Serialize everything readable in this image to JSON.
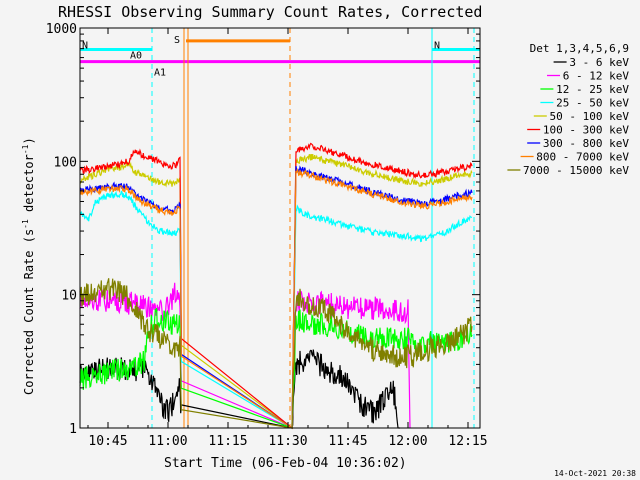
{
  "chart_data": {
    "type": "line",
    "title": "RHESSI Observing Summary Count Rates, Corrected",
    "xlabel": "Start Time (06-Feb-04 10:36:02)",
    "ylabel_main": "Corrected Count Rate (s",
    "ylabel_sup1": "-1",
    "ylabel_mid": " detector",
    "ylabel_sup2": "-1",
    "ylabel_end": ")",
    "yscale": "log",
    "ylim": [
      1,
      1000
    ],
    "xlim_min": [
      638,
      738
    ],
    "x_ticks": [
      {
        "t": 645,
        "label": "10:45"
      },
      {
        "t": 660,
        "label": "11:00"
      },
      {
        "t": 675,
        "label": "11:15"
      },
      {
        "t": 690,
        "label": "11:30"
      },
      {
        "t": 705,
        "label": "11:45"
      },
      {
        "t": 720,
        "label": "12:00"
      },
      {
        "t": 735,
        "label": "12:15"
      }
    ],
    "y_ticks": [
      {
        "v": 1,
        "label": "1"
      },
      {
        "v": 10,
        "label": "10"
      },
      {
        "v": 100,
        "label": "100"
      },
      {
        "v": 1000,
        "label": "1000"
      }
    ],
    "legend_title": "Det 1,3,4,5,6,9",
    "legend_position": "right",
    "series": [
      {
        "name": "3 - 6 keV",
        "color": "#000000",
        "points": [
          [
            638,
            2.6
          ],
          [
            646,
            2.8
          ],
          [
            655,
            2.7
          ],
          [
            656,
            2.3
          ],
          [
            658,
            1.6
          ],
          [
            660,
            1.3
          ],
          [
            661,
            1.5
          ],
          [
            663,
            2.0
          ],
          [
            663.5,
            1.0
          ],
          [
            691,
            1.0
          ],
          [
            692,
            3.0
          ],
          [
            696,
            3.4
          ],
          [
            700,
            2.6
          ],
          [
            704,
            2.4
          ],
          [
            708,
            1.5
          ],
          [
            712,
            1.3
          ],
          [
            716,
            2.2
          ],
          [
            718,
            1.0
          ]
        ]
      },
      {
        "name": "6 - 12 keV",
        "color": "#ff00ff",
        "points": [
          [
            638,
            9
          ],
          [
            648,
            9
          ],
          [
            656,
            8
          ],
          [
            658,
            7.5
          ],
          [
            660,
            8
          ],
          [
            662,
            11
          ],
          [
            663,
            7.8
          ],
          [
            663.5,
            1.0
          ],
          [
            691,
            1.0
          ],
          [
            692,
            9
          ],
          [
            700,
            8.5
          ],
          [
            706,
            8
          ],
          [
            710,
            8
          ],
          [
            716,
            7.8
          ],
          [
            720,
            7.5
          ],
          [
            720.5,
            1.0
          ]
        ]
      },
      {
        "name": "12 - 25 keV",
        "color": "#00ff00",
        "points": [
          [
            638,
            2.3
          ],
          [
            645,
            2.6
          ],
          [
            652,
            2.9
          ],
          [
            654,
            3.2
          ],
          [
            655,
            5.5
          ],
          [
            657,
            6.5
          ],
          [
            660,
            6.2
          ],
          [
            663,
            6.0
          ],
          [
            663.5,
            1.0
          ],
          [
            691,
            1.0
          ],
          [
            692,
            6.5
          ],
          [
            700,
            5.8
          ],
          [
            708,
            5.0
          ],
          [
            716,
            4.8
          ],
          [
            720,
            4.6
          ],
          [
            724,
            4.3
          ],
          [
            728,
            4.4
          ],
          [
            734,
            4.6
          ],
          [
            736,
            5.0
          ]
        ]
      },
      {
        "name": "25 - 50 keV",
        "color": "#00ffff",
        "points": [
          [
            638,
            42
          ],
          [
            640,
            36
          ],
          [
            642,
            50
          ],
          [
            645,
            55
          ],
          [
            648,
            57
          ],
          [
            650,
            55
          ],
          [
            652,
            45
          ],
          [
            655,
            35
          ],
          [
            658,
            30
          ],
          [
            661,
            29
          ],
          [
            663,
            30
          ],
          [
            663.5,
            1.0
          ],
          [
            691,
            1.0
          ],
          [
            692,
            45
          ],
          [
            694,
            40
          ],
          [
            700,
            36
          ],
          [
            706,
            32
          ],
          [
            712,
            29
          ],
          [
            718,
            28
          ],
          [
            724,
            26
          ],
          [
            728,
            28
          ],
          [
            732,
            33
          ],
          [
            736,
            38
          ]
        ]
      },
      {
        "name": "50 - 100 keV",
        "color": "#cccc00",
        "points": [
          [
            638,
            72
          ],
          [
            642,
            80
          ],
          [
            645,
            88
          ],
          [
            648,
            90
          ],
          [
            650,
            95
          ],
          [
            652,
            82
          ],
          [
            655,
            75
          ],
          [
            658,
            70
          ],
          [
            661,
            68
          ],
          [
            663,
            72
          ],
          [
            663.5,
            1.0
          ],
          [
            691,
            1.0
          ],
          [
            692,
            100
          ],
          [
            696,
            108
          ],
          [
            700,
            100
          ],
          [
            704,
            93
          ],
          [
            708,
            85
          ],
          [
            712,
            80
          ],
          [
            716,
            74
          ],
          [
            720,
            70
          ],
          [
            724,
            68
          ],
          [
            728,
            72
          ],
          [
            732,
            78
          ],
          [
            736,
            82
          ]
        ]
      },
      {
        "name": "100 - 300 keV",
        "color": "#ff0000",
        "points": [
          [
            638,
            85
          ],
          [
            642,
            88
          ],
          [
            645,
            92
          ],
          [
            648,
            95
          ],
          [
            650,
            100
          ],
          [
            652,
            120
          ],
          [
            654,
            110
          ],
          [
            656,
            105
          ],
          [
            658,
            98
          ],
          [
            660,
            90
          ],
          [
            662,
            95
          ],
          [
            663,
            105
          ],
          [
            663.5,
            1.0
          ],
          [
            691,
            1.0
          ],
          [
            692,
            120
          ],
          [
            696,
            132
          ],
          [
            700,
            120
          ],
          [
            704,
            110
          ],
          [
            708,
            100
          ],
          [
            712,
            94
          ],
          [
            716,
            88
          ],
          [
            720,
            82
          ],
          [
            724,
            78
          ],
          [
            728,
            82
          ],
          [
            732,
            88
          ],
          [
            736,
            92
          ]
        ]
      },
      {
        "name": "300 - 800 keV",
        "color": "#0000ff",
        "points": [
          [
            638,
            60
          ],
          [
            642,
            63
          ],
          [
            645,
            65
          ],
          [
            648,
            66
          ],
          [
            650,
            65
          ],
          [
            652,
            56
          ],
          [
            655,
            50
          ],
          [
            658,
            45
          ],
          [
            661,
            43
          ],
          [
            663,
            48
          ],
          [
            663.5,
            1.0
          ],
          [
            691,
            1.0
          ],
          [
            692,
            88
          ],
          [
            696,
            82
          ],
          [
            700,
            74
          ],
          [
            704,
            70
          ],
          [
            708,
            63
          ],
          [
            712,
            58
          ],
          [
            716,
            54
          ],
          [
            720,
            50
          ],
          [
            724,
            48
          ],
          [
            728,
            50
          ],
          [
            732,
            55
          ],
          [
            736,
            58
          ]
        ]
      },
      {
        "name": "800 - 7000 keV",
        "color": "#ff8000",
        "points": [
          [
            638,
            58
          ],
          [
            642,
            60
          ],
          [
            645,
            62
          ],
          [
            648,
            63
          ],
          [
            650,
            62
          ],
          [
            652,
            53
          ],
          [
            655,
            47
          ],
          [
            658,
            43
          ],
          [
            661,
            41
          ],
          [
            663,
            45
          ],
          [
            663.5,
            1.0
          ],
          [
            691,
            1.0
          ],
          [
            692,
            84
          ],
          [
            696,
            78
          ],
          [
            700,
            71
          ],
          [
            704,
            67
          ],
          [
            708,
            60
          ],
          [
            712,
            56
          ],
          [
            716,
            52
          ],
          [
            720,
            48
          ],
          [
            724,
            46
          ],
          [
            728,
            48
          ],
          [
            732,
            52
          ],
          [
            736,
            54
          ]
        ]
      },
      {
        "name": "7000 - 15000 keV",
        "color": "#808000",
        "points": [
          [
            638,
            9.8
          ],
          [
            642,
            10
          ],
          [
            645,
            11
          ],
          [
            648,
            10.5
          ],
          [
            650,
            9.5
          ],
          [
            652,
            7.5
          ],
          [
            655,
            5.5
          ],
          [
            658,
            4.8
          ],
          [
            661,
            4.2
          ],
          [
            663,
            4.0
          ],
          [
            663.5,
            1.0
          ],
          [
            691,
            1.0
          ],
          [
            692,
            10
          ],
          [
            694,
            9
          ],
          [
            698,
            8
          ],
          [
            702,
            6.5
          ],
          [
            706,
            5
          ],
          [
            710,
            4
          ],
          [
            714,
            3.6
          ],
          [
            718,
            3.4
          ],
          [
            722,
            3.5
          ],
          [
            726,
            4
          ],
          [
            730,
            4.5
          ],
          [
            734,
            5.2
          ],
          [
            736,
            5.8
          ]
        ]
      }
    ],
    "annotations": [
      {
        "label": "N",
        "color": "#00ffff",
        "type": "segment",
        "t0": 638,
        "t1": 656,
        "v": 690
      },
      {
        "label": "N",
        "color": "#00ffff",
        "type": "segment",
        "t0": 726,
        "t1": 738,
        "v": 690
      },
      {
        "label": "A0",
        "color": "#ff00ff",
        "type": "segment",
        "t0": 638,
        "t1": 656,
        "v": 560
      },
      {
        "label": "A1",
        "color": "#ff00ff",
        "type": "segment",
        "t0": 656,
        "t1": 738,
        "v": 560
      },
      {
        "label": "S",
        "color": "#ff8000",
        "type": "segment",
        "t0": 664.5,
        "t1": 690.5,
        "v": 800
      },
      {
        "label": "",
        "color": "#00ffff",
        "type": "vline-dashed",
        "t": 656
      },
      {
        "label": "",
        "color": "#00ffff",
        "type": "vline",
        "t": 726
      },
      {
        "label": "",
        "color": "#00ffff",
        "type": "vline-dashed",
        "t": 736.5
      },
      {
        "label": "",
        "color": "#ff8000",
        "type": "vline",
        "t": 664
      },
      {
        "label": "",
        "color": "#ff8000",
        "type": "vline",
        "t": 665
      },
      {
        "label": "",
        "color": "#ff8000",
        "type": "vline-dashed",
        "t": 690.5
      }
    ],
    "grid": false
  },
  "footer_date": "14-Oct-2021 20:38"
}
